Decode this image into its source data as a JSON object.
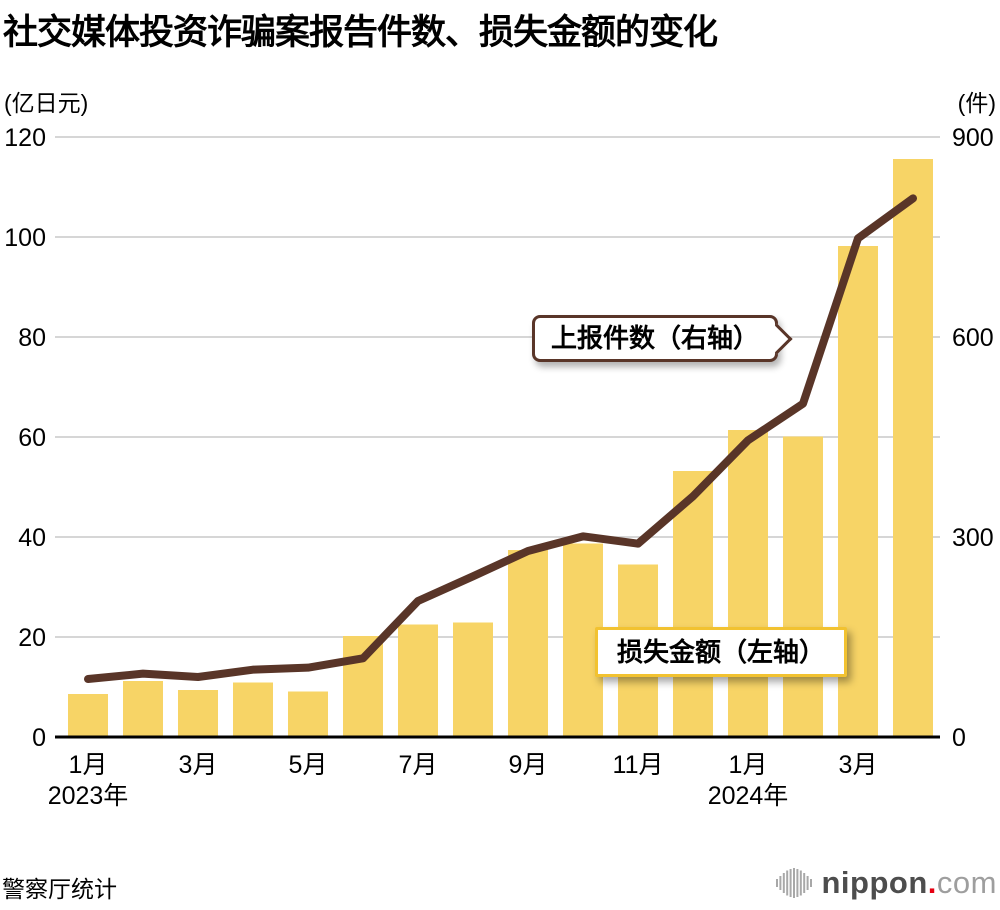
{
  "header": {
    "title": "社交媒体投资诈骗案报告件数、损失金额的变化"
  },
  "footer": {
    "source": "警察厅统计",
    "logo": {
      "name": "nippon",
      "dot": ".",
      "tld": "com"
    }
  },
  "colors": {
    "bar": "#F7D466",
    "line": "#593528",
    "grid": "#C9C9C9",
    "axis": "#000000",
    "loss_callout_border": "#F2C230"
  },
  "chart_data": {
    "type": "bar+line",
    "title": "社交媒体投资诈骗案报告件数、损失金额的变化",
    "x": [
      "2023年1月",
      "2023年2月",
      "2023年3月",
      "2023年4月",
      "2023年5月",
      "2023年6月",
      "2023年7月",
      "2023年8月",
      "2023年9月",
      "2023年10月",
      "2023年11月",
      "2023年12月",
      "2024年1月",
      "2024年2月",
      "2024年3月",
      "2024年4月"
    ],
    "series": [
      {
        "name": "损失金额（左轴）",
        "type": "bar",
        "axis": "left",
        "color": "#F7D466",
        "values": [
          8.6,
          11.2,
          9.4,
          10.9,
          9.1,
          20.2,
          22.5,
          22.9,
          37.4,
          38.7,
          34.5,
          53.2,
          61.4,
          60.1,
          98.2,
          115.6
        ]
      },
      {
        "name": "上报件数（右轴）",
        "type": "line",
        "axis": "right",
        "color": "#593528",
        "values": [
          87,
          95,
          90,
          101,
          104,
          118,
          204,
          241,
          279,
          301,
          290,
          361,
          445,
          500,
          748,
          808
        ]
      }
    ],
    "left_axis": {
      "unit": "(亿日元)",
      "ticks": [
        0,
        20,
        40,
        60,
        80,
        100,
        120
      ],
      "max": 120
    },
    "right_axis": {
      "unit": "(件)",
      "ticks": [
        0,
        300,
        600,
        900
      ],
      "max": 900
    },
    "x_tick_labels": [
      {
        "i": 0,
        "label": "1月"
      },
      {
        "i": 2,
        "label": "3月"
      },
      {
        "i": 4,
        "label": "5月"
      },
      {
        "i": 6,
        "label": "7月"
      },
      {
        "i": 8,
        "label": "9月"
      },
      {
        "i": 10,
        "label": "11月"
      },
      {
        "i": 12,
        "label": "1月"
      },
      {
        "i": 14,
        "label": "3月"
      }
    ],
    "year_labels": [
      {
        "i": 0,
        "label": "2023年"
      },
      {
        "i": 12,
        "label": "2024年"
      }
    ],
    "grid": true,
    "legend_position": "callouts-on-plot"
  }
}
